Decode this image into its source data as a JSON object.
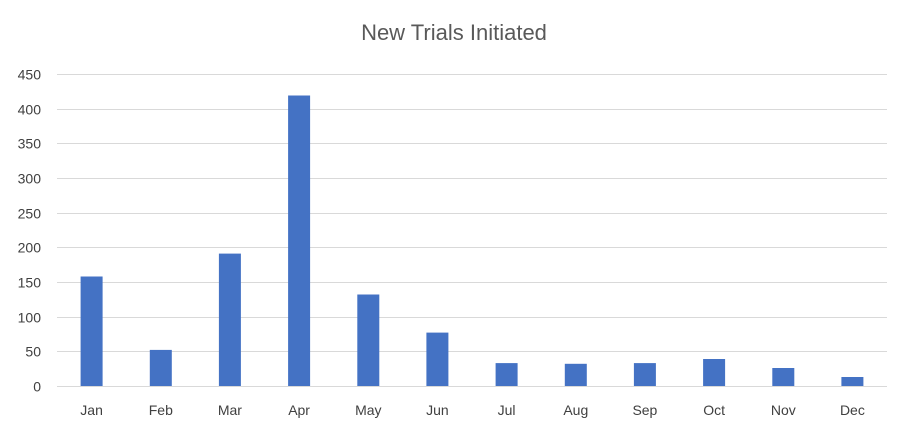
{
  "chart_data": {
    "type": "bar",
    "title": "New Trials Initiated",
    "xlabel": "",
    "ylabel": "",
    "categories": [
      "Jan",
      "Feb",
      "Mar",
      "Apr",
      "May",
      "Jun",
      "Jul",
      "Aug",
      "Sep",
      "Oct",
      "Nov",
      "Dec"
    ],
    "values": [
      158,
      52,
      191,
      419,
      132,
      77,
      33,
      32,
      33,
      39,
      26,
      13
    ],
    "ylim": [
      0,
      450
    ],
    "yticks": [
      0,
      50,
      100,
      150,
      200,
      250,
      300,
      350,
      400,
      450
    ],
    "grid": true,
    "legend": "none",
    "bar_color": "#4472C4"
  }
}
